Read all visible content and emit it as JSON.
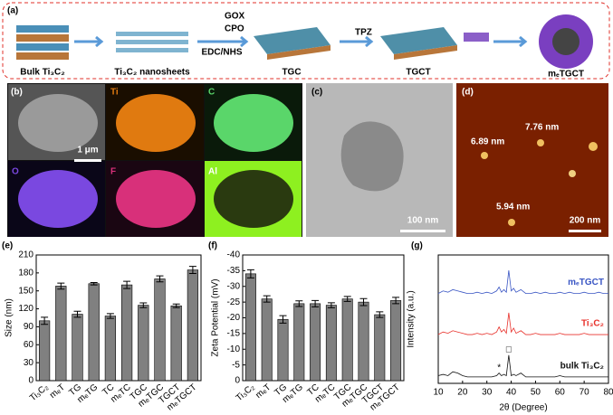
{
  "scheme": {
    "label": "(a)",
    "bulk": "Bulk Ti₃C₂",
    "nanosheets": "Ti₃C₂ nanosheets",
    "reagent1": "GOX",
    "reagent2": "CPO",
    "coupling": "EDC/NHS",
    "tgc": "TGC",
    "drug": "TPZ",
    "tgct": "TGCT",
    "final": "mₑTGCT"
  },
  "mapping": {
    "label": "(b)",
    "elements": [
      "Ti",
      "C",
      "O",
      "F",
      "Al"
    ],
    "scale": "1 μm"
  },
  "tem": {
    "label": "(c)",
    "scale": "100 nm"
  },
  "afm": {
    "label": "(d)",
    "heights": [
      "6.89 nm",
      "7.76 nm",
      "5.94 nm"
    ],
    "scale": "200 nm"
  },
  "chart_data": [
    {
      "type": "bar",
      "label": "(e)",
      "y_label": "Size (nm)",
      "categories": [
        "Ti₃C₂",
        "mₑT",
        "TG",
        "mₑTG",
        "TC",
        "mₑTC",
        "TGC",
        "mₑTGC",
        "TGCT",
        "mₑTGCT"
      ],
      "values": [
        100,
        158,
        111,
        162,
        108,
        160,
        126,
        170,
        125,
        185
      ],
      "errors": [
        6,
        5,
        5,
        2,
        4,
        6,
        4,
        5,
        3,
        6
      ],
      "color": "#808080",
      "ylim": [
        0,
        210
      ],
      "yticks": [
        0,
        30,
        60,
        90,
        120,
        150,
        180,
        210
      ]
    },
    {
      "type": "bar",
      "label": "(f)",
      "y_label": "Zeta Potential (mV)",
      "categories": [
        "Ti₃C₂",
        "mₑT",
        "TG",
        "mₑTG",
        "TC",
        "mₑTC",
        "TGC",
        "mₑTGC",
        "TGCT",
        "mₑTGCT"
      ],
      "values": [
        -34,
        -26,
        -19.5,
        -24.5,
        -24.5,
        -24,
        -26,
        -25,
        -21,
        -25.5
      ],
      "errors": [
        1.3,
        1,
        1.2,
        0.9,
        1,
        0.8,
        0.8,
        1.1,
        0.9,
        1
      ],
      "color": "#808080",
      "ylim": [
        0,
        -40
      ],
      "yticks": [
        0,
        -5,
        -10,
        -15,
        -20,
        -25,
        -30,
        -35,
        -40
      ]
    },
    {
      "type": "line",
      "label": "(g)",
      "x_label": "2θ (Degree)",
      "y_label": "Intensity (a.u.)",
      "x": [
        10,
        12,
        14,
        16,
        18,
        20,
        22,
        24,
        26,
        28,
        30,
        32,
        34,
        35,
        36,
        37,
        38,
        39,
        40,
        41,
        42,
        44,
        46,
        48,
        50,
        52,
        54,
        56,
        58,
        60,
        62,
        64,
        66,
        68,
        70,
        72,
        74,
        76,
        78,
        80
      ],
      "series": [
        {
          "name": "mₑTGCT",
          "color": "#3a56c4",
          "values": [
            70,
            72,
            71,
            73,
            72,
            71,
            70,
            70,
            71,
            70,
            71,
            70,
            72,
            75,
            71,
            73,
            71,
            88,
            72,
            74,
            71,
            73,
            70,
            70,
            71,
            70,
            71,
            70,
            70,
            71,
            70,
            71,
            70,
            70,
            71,
            70,
            70,
            71,
            70,
            70
          ]
        },
        {
          "name": "Ti₃C₂",
          "color": "#e8322c",
          "values": [
            38,
            40,
            39,
            41,
            40,
            39,
            38,
            38,
            39,
            38,
            39,
            38,
            40,
            44,
            40,
            42,
            39,
            55,
            40,
            43,
            39,
            41,
            38,
            38,
            39,
            38,
            38,
            38,
            38,
            39,
            38,
            38,
            38,
            38,
            39,
            38,
            38,
            38,
            38,
            38
          ]
        },
        {
          "name": "bulk Ti₃C₂",
          "color": "#111111",
          "values": [
            6,
            7,
            6,
            9,
            8,
            6,
            5,
            5,
            5,
            5,
            5,
            5,
            6,
            8,
            6,
            7,
            6,
            22,
            6,
            7,
            6,
            8,
            5,
            5,
            5,
            5,
            5,
            5,
            5,
            6,
            5,
            5,
            5,
            5,
            5,
            5,
            5,
            5,
            5,
            5
          ]
        }
      ],
      "annotations": [
        {
          "text": "*",
          "x": 35,
          "y": 12
        },
        {
          "text": "□",
          "x": 39,
          "y": 26
        }
      ],
      "ylim": [
        0,
        100
      ],
      "xlim": [
        10,
        80
      ],
      "xticks": [
        10,
        20,
        30,
        40,
        50,
        60,
        70,
        80
      ]
    }
  ]
}
